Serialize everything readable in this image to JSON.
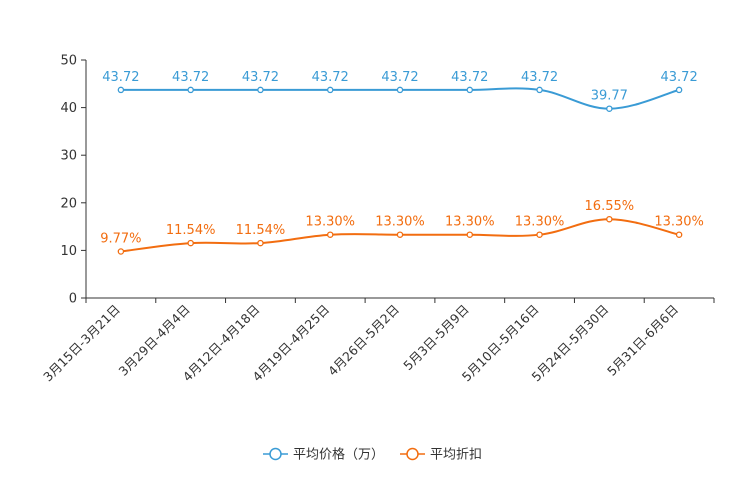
{
  "chart_data": {
    "type": "line",
    "title": "",
    "xlabel": "",
    "ylabel": "",
    "ylim": [
      0,
      50
    ],
    "yticks": [
      0,
      10,
      20,
      30,
      40,
      50
    ],
    "categories": [
      "3月15日-3月21日",
      "3月29日-4月4日",
      "4月12日-4月18日",
      "4月19日-4月25日",
      "4月26日-5月2日",
      "5月3日-5月9日",
      "5月10日-5月16日",
      "5月24日-5月30日",
      "5月31日-6月6日"
    ],
    "series": [
      {
        "name": "平均价格（万）",
        "color": "#3a9bd5",
        "values": [
          43.72,
          43.72,
          43.72,
          43.72,
          43.72,
          43.72,
          43.72,
          39.77,
          43.72
        ],
        "labels": [
          "43.72",
          "43.72",
          "43.72",
          "43.72",
          "43.72",
          "43.72",
          "43.72",
          "39.77",
          "43.72"
        ]
      },
      {
        "name": "平均折扣",
        "color": "#f26d10",
        "values": [
          9.77,
          11.54,
          11.54,
          13.3,
          13.3,
          13.3,
          13.3,
          16.55,
          13.3
        ],
        "labels": [
          "9.77%",
          "11.54%",
          "11.54%",
          "13.30%",
          "13.30%",
          "13.30%",
          "13.30%",
          "16.55%",
          "13.30%"
        ]
      }
    ],
    "legend": {
      "position": "bottom-center"
    },
    "grid": false
  }
}
